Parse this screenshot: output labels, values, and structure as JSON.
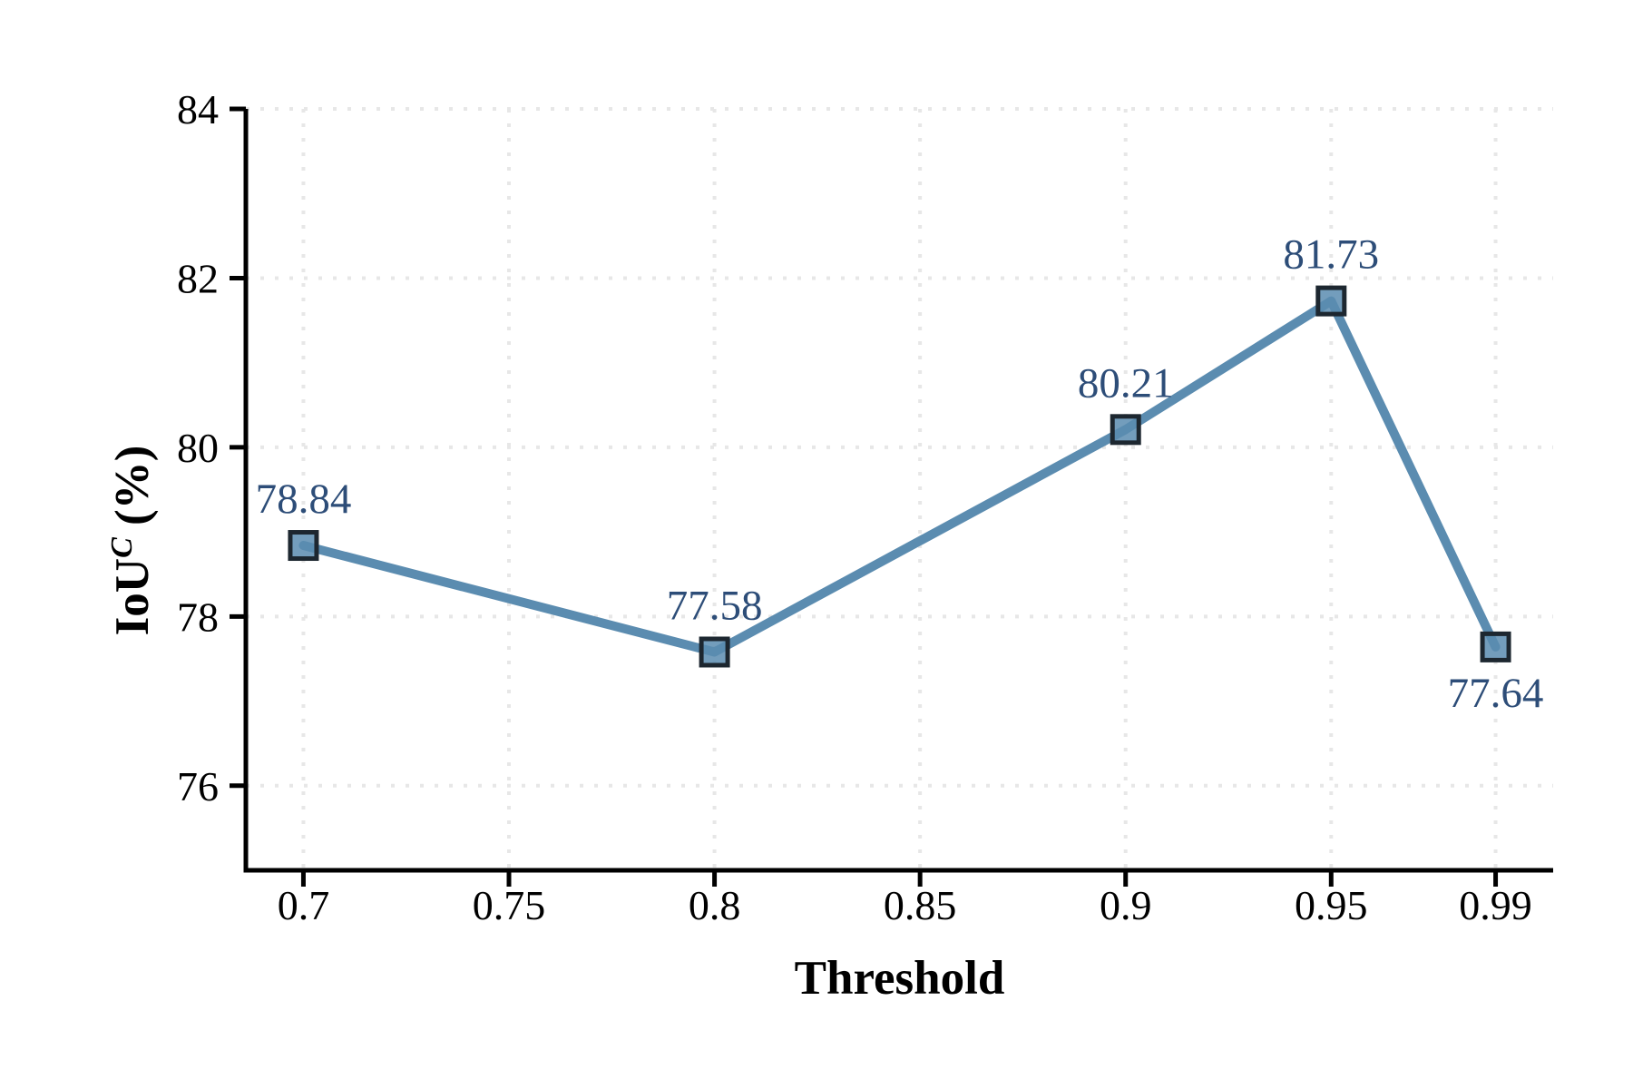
{
  "figure": {
    "background": "#ffffff"
  },
  "chart_data": {
    "type": "line",
    "title": "",
    "xlabel": "Threshold",
    "ylabel": {
      "base": "IoU",
      "superscript": "C",
      "suffix": " (%)"
    },
    "x": [
      0.7,
      0.8,
      0.9,
      0.95,
      0.99
    ],
    "y": [
      78.84,
      77.58,
      80.21,
      81.73,
      77.64
    ],
    "point_labels": [
      "78.84",
      "77.58",
      "80.21",
      "81.73",
      "77.64"
    ],
    "point_label_side": [
      "above",
      "above",
      "above",
      "above",
      "below"
    ],
    "x_ticks": [
      0.7,
      0.75,
      0.8,
      0.85,
      0.9,
      0.95,
      0.99
    ],
    "x_tick_labels": [
      "0.7",
      "0.75",
      "0.8",
      "0.85",
      "0.9",
      "0.95",
      "0.99"
    ],
    "y_ticks": [
      76,
      78,
      80,
      82,
      84
    ],
    "y_tick_labels": [
      "76",
      "78",
      "80",
      "82",
      "84"
    ],
    "xlim": [
      0.686,
      1.004
    ],
    "ylim": [
      75,
      84
    ],
    "grid": {
      "shown": true,
      "style": "dotted"
    },
    "legend": {
      "shown": false
    },
    "marker": {
      "shape": "square",
      "size": 29
    },
    "colors": {
      "line": "#5b8cb0",
      "marker_fill": "#5b8cb0",
      "marker_edge": "#1d2730",
      "point_label": "#2d4d78",
      "axis": "#000000",
      "tick_label": "#000000",
      "grid": "#e7e7e7"
    }
  }
}
